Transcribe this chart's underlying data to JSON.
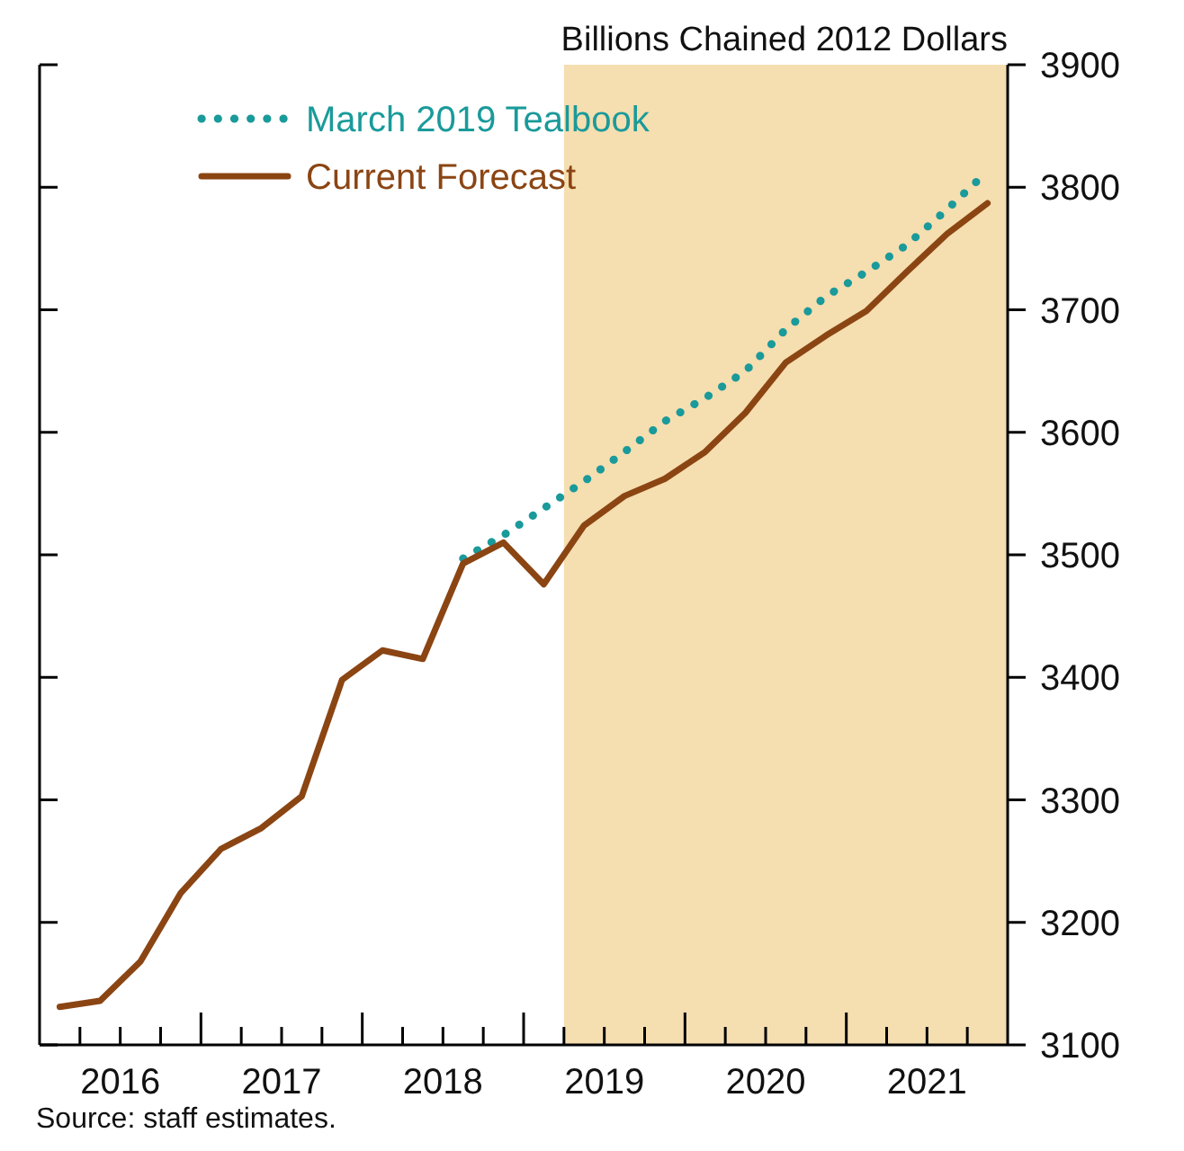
{
  "chart_data": {
    "type": "line",
    "ylabel": "Billions Chained 2012 Dollars",
    "xlim": [
      2016,
      2022
    ],
    "xticks": [
      {
        "value": 2016.25,
        "label": null
      },
      {
        "value": 2016.5,
        "label": "2016"
      },
      {
        "value": 2016.75,
        "label": null
      },
      {
        "value": 2017,
        "label": null
      },
      {
        "value": 2017.25,
        "label": null
      },
      {
        "value": 2017.5,
        "label": "2017"
      },
      {
        "value": 2017.75,
        "label": null
      },
      {
        "value": 2018,
        "label": null
      },
      {
        "value": 2018.25,
        "label": null
      },
      {
        "value": 2018.5,
        "label": "2018"
      },
      {
        "value": 2018.75,
        "label": null
      },
      {
        "value": 2019,
        "label": null
      },
      {
        "value": 2019.25,
        "label": null
      },
      {
        "value": 2019.5,
        "label": "2019"
      },
      {
        "value": 2019.75,
        "label": null
      },
      {
        "value": 2020,
        "label": null
      },
      {
        "value": 2020.25,
        "label": null
      },
      {
        "value": 2020.5,
        "label": "2020"
      },
      {
        "value": 2020.75,
        "label": null
      },
      {
        "value": 2021,
        "label": null
      },
      {
        "value": 2021.25,
        "label": null
      },
      {
        "value": 2021.5,
        "label": "2021"
      },
      {
        "value": 2021.75,
        "label": null
      }
    ],
    "ylim": [
      3100,
      3900
    ],
    "yticks": [
      3100,
      3200,
      3300,
      3400,
      3500,
      3600,
      3700,
      3800,
      3900
    ],
    "grid": false,
    "legend": "top left",
    "bands": [
      {
        "axis": "x",
        "from": 2019.25,
        "to": 2022,
        "label": null,
        "color": "#f5deb0"
      }
    ],
    "series": [
      {
        "name": "March 2019 Tealbook",
        "color": "#1a9a9a",
        "line_style": "dotted",
        "x": [
          2018.625,
          2018.875,
          2019.125,
          2019.375,
          2019.625,
          2019.875,
          2020.125,
          2020.375,
          2020.625,
          2020.875,
          2021.125,
          2021.375,
          2021.625,
          2021.875
        ],
        "values": [
          3497,
          3516,
          3538,
          3560,
          3584,
          3609,
          3628,
          3650,
          3684,
          3711,
          3731,
          3753,
          3782,
          3813
        ]
      },
      {
        "name": "Current Forecast",
        "color": "#8b4513",
        "line_style": "solid",
        "x": [
          2016.125,
          2016.375,
          2016.625,
          2016.875,
          2017.125,
          2017.375,
          2017.625,
          2017.875,
          2018.125,
          2018.375,
          2018.625,
          2018.875,
          2019.125,
          2019.375,
          2019.625,
          2019.875,
          2020.125,
          2020.375,
          2020.625,
          2020.875,
          2021.125,
          2021.375,
          2021.625,
          2021.875
        ],
        "values": [
          3131,
          3136,
          3168,
          3224,
          3260,
          3277,
          3303,
          3398,
          3422,
          3415,
          3493,
          3510,
          3476,
          3524,
          3548,
          3562,
          3584,
          3616,
          3657,
          3679,
          3699,
          3731,
          3762,
          3787
        ]
      }
    ],
    "annotations": [
      "Source: staff estimates."
    ]
  }
}
